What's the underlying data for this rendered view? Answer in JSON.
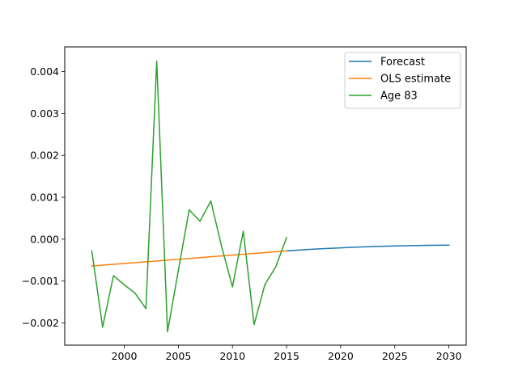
{
  "chart_data": {
    "type": "line",
    "title": "",
    "xlabel": "",
    "ylabel": "",
    "xlim": [
      1994.5,
      2031.6
    ],
    "ylim": [
      -0.00253,
      0.00459
    ],
    "x_ticks": [
      2000,
      2005,
      2010,
      2015,
      2020,
      2025,
      2030
    ],
    "x_tick_labels": [
      "2000",
      "2005",
      "2010",
      "2015",
      "2020",
      "2025",
      "2030"
    ],
    "y_ticks": [
      -0.002,
      -0.001,
      0.0,
      0.001,
      0.002,
      0.003,
      0.004
    ],
    "y_tick_labels": [
      "−0.002",
      "−0.001",
      "0.000",
      "0.001",
      "0.002",
      "0.003",
      "0.004"
    ],
    "grid": false,
    "legend_position": "top-right",
    "series": [
      {
        "name": "Forecast",
        "color": "#1f77b4",
        "x": [
          2015,
          2016,
          2017,
          2018,
          2019,
          2020,
          2021,
          2022,
          2023,
          2024,
          2025,
          2026,
          2027,
          2028,
          2029,
          2030
        ],
        "y": [
          -0.00028,
          -0.000262,
          -0.000246,
          -0.000232,
          -0.000219,
          -0.000207,
          -0.000196,
          -0.000186,
          -0.000177,
          -0.000169,
          -0.000162,
          -0.000156,
          -0.000151,
          -0.000147,
          -0.000144,
          -0.000142
        ]
      },
      {
        "name": "OLS estimate",
        "color": "#ff7f0e",
        "x": [
          1997,
          2015
        ],
        "y": [
          -0.00064,
          -0.00028
        ]
      },
      {
        "name": "Age 83",
        "color": "#2ca02c",
        "x": [
          1997,
          1998,
          1999,
          2000,
          2001,
          2002,
          2003,
          2004,
          2005,
          2006,
          2007,
          2008,
          2009,
          2010,
          2011,
          2012,
          2013,
          2014,
          2015
        ],
        "y": [
          -0.00028,
          -0.0021,
          -0.00087,
          -0.00109,
          -0.00129,
          -0.00166,
          0.00425,
          -0.00221,
          -0.00074,
          0.0007,
          0.00043,
          0.00091,
          -0.00018,
          -0.00114,
          0.00019,
          -0.00204,
          -0.00108,
          -0.00066,
          4e-05
        ]
      }
    ]
  }
}
